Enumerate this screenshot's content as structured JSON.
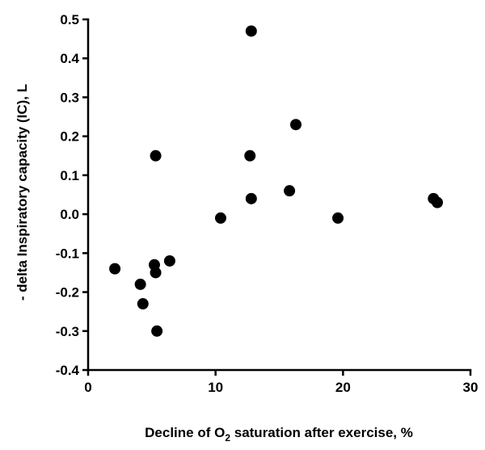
{
  "chart_data": {
    "type": "scatter",
    "title": "",
    "xlabel_parts": {
      "before": "Decline of O",
      "subscript": "2",
      "after": " saturation after exercise, %"
    },
    "ylabel": "- delta Inspiratory capacity (IC), L",
    "xlim": [
      0,
      30
    ],
    "ylim": [
      -0.4,
      0.5
    ],
    "x_ticks": [
      0,
      10,
      20,
      30
    ],
    "x_tick_labels": [
      "0",
      "10",
      "20",
      "30"
    ],
    "y_ticks": [
      -0.4,
      -0.3,
      -0.2,
      -0.1,
      0.0,
      0.1,
      0.2,
      0.3,
      0.4,
      0.5
    ],
    "y_tick_labels": [
      "-0.4",
      "-0.3",
      "-0.2",
      "-0.1",
      "0.0",
      "0.1",
      "0.2",
      "0.3",
      "0.4",
      "0.5"
    ],
    "grid": false,
    "legend": "none",
    "marker_color": "#000000",
    "points": [
      {
        "x": 12.8,
        "y": 0.47
      },
      {
        "x": 16.3,
        "y": 0.23
      },
      {
        "x": 5.3,
        "y": 0.15
      },
      {
        "x": 12.7,
        "y": 0.15
      },
      {
        "x": 15.8,
        "y": 0.06
      },
      {
        "x": 12.8,
        "y": 0.04
      },
      {
        "x": 27.1,
        "y": 0.04
      },
      {
        "x": 27.4,
        "y": 0.03
      },
      {
        "x": 10.4,
        "y": -0.01
      },
      {
        "x": 19.6,
        "y": -0.01
      },
      {
        "x": 2.1,
        "y": -0.14
      },
      {
        "x": 5.2,
        "y": -0.13
      },
      {
        "x": 6.4,
        "y": -0.12
      },
      {
        "x": 5.3,
        "y": -0.15
      },
      {
        "x": 4.1,
        "y": -0.18
      },
      {
        "x": 4.3,
        "y": -0.23
      },
      {
        "x": 5.4,
        "y": -0.3
      }
    ]
  }
}
